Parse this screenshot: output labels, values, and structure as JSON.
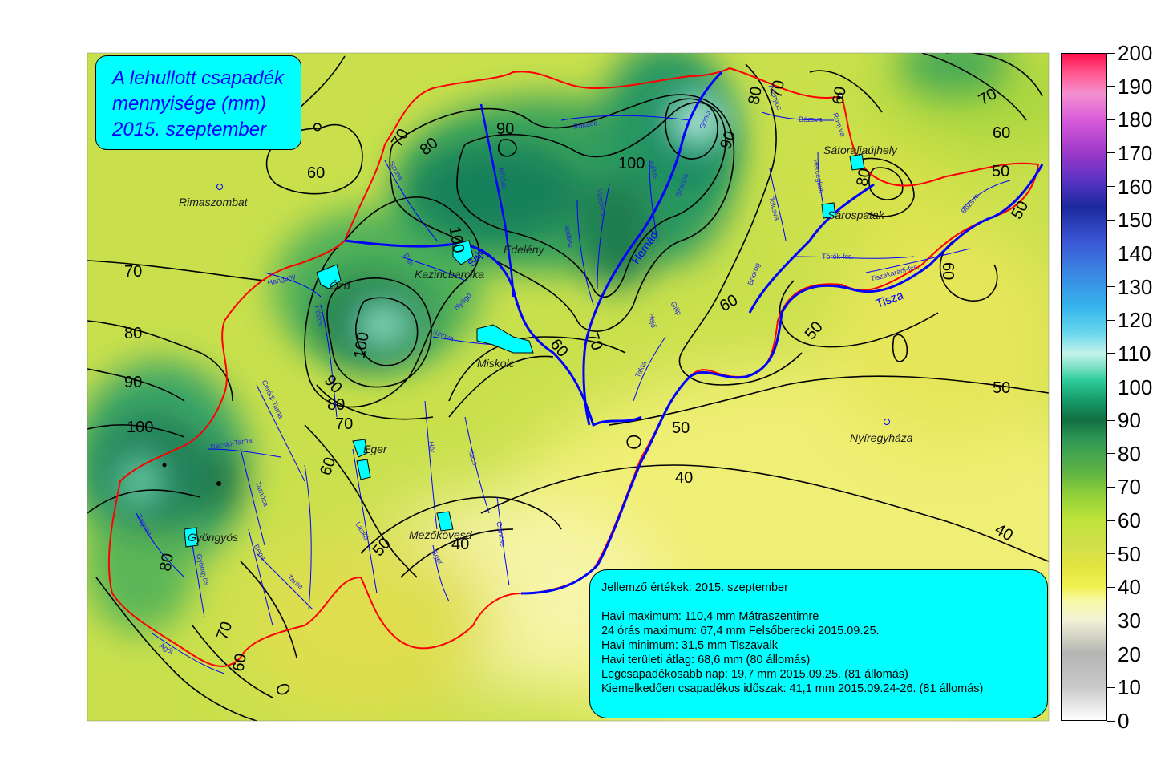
{
  "title": {
    "line1": "A lehullott csapadék",
    "line2": "mennyisége (mm)",
    "line3": "2015. szeptember"
  },
  "info": {
    "header": "Jellemző értékek: 2015. szeptember",
    "lines": [
      "Havi maximum: 110,4 mm Mátraszentimre",
      "24 órás maximum: 67,4 mm Felsőberecki 2015.09.25.",
      "Havi minimum:  31,5 mm Tiszavalk",
      "Havi területi átlag: 68,6 mm (80 állomás)",
      "Legcsapadékosabb nap: 19,7 mm 2015.09.25. (81 állomás)",
      "Kiemelkedően csapadékos időszak: 41,1 mm 2015.09.24-26. (81 állomás)"
    ]
  },
  "legend": {
    "ticks": [
      0,
      10,
      20,
      30,
      40,
      50,
      60,
      70,
      80,
      90,
      100,
      110,
      120,
      130,
      140,
      150,
      160,
      170,
      180,
      190,
      200
    ],
    "min": 0,
    "max": 200
  },
  "colors": {
    "border": "#ff0000",
    "river_main": "#0000ff",
    "river_minor": "#2a2ad8",
    "lake": "#00ffff",
    "contour": "#000000"
  },
  "cities": [
    {
      "name": "Rimaszombat"
    },
    {
      "name": "Ózd"
    },
    {
      "name": "Kazincbarcika"
    },
    {
      "name": "Edelény"
    },
    {
      "name": "Miskolc"
    },
    {
      "name": "Eger"
    },
    {
      "name": "Gyöngyös"
    },
    {
      "name": "Mezőkövesd"
    },
    {
      "name": "Sátoraljaújhely"
    },
    {
      "name": "Sárospatak"
    },
    {
      "name": "Nyíregyháza"
    }
  ],
  "rivers": {
    "tisza": "Tisza",
    "hernad": "Hernád",
    "sajo": "Sajó",
    "minor": [
      "Rakaca",
      "Bódva",
      "Szuha",
      "Bán",
      "Hangony",
      "Hódos",
      "Szinva",
      "Vadász",
      "Vasonca",
      "Bélus",
      "Szartos",
      "Gönci",
      "Bózsva",
      "Ronyva",
      "Aranyos",
      "Bózsva",
      "Hercegkúti",
      "Bodrog",
      "Tolcsva",
      "Török-fcs.",
      "Tiszakarádi-fcs.",
      "Takta",
      "Hejő",
      "Hór",
      "Kács",
      "Csincse",
      "Eger",
      "Laskó",
      "Tarna",
      "Tarnóca",
      "Bene",
      "Gyöngyös",
      "Ágói",
      "Zagyva",
      "Nyögő",
      "Gilip",
      "Recski-Tarna",
      "Cerédi-Tarna",
      "Bodva",
      "Rima"
    ]
  },
  "contour_labels": [
    "70",
    "80",
    "60",
    "90",
    "100",
    "100",
    "90",
    "80",
    "70",
    "80",
    "60",
    "70",
    "60",
    "50",
    "70",
    "80",
    "90",
    "100",
    "90",
    "80",
    "70",
    "60",
    "70",
    "60",
    "50",
    "80",
    "70",
    "60",
    "100",
    "50",
    "60",
    "40",
    "40",
    "50",
    "50",
    "50",
    "60",
    "40",
    "50",
    "70",
    "60"
  ]
}
